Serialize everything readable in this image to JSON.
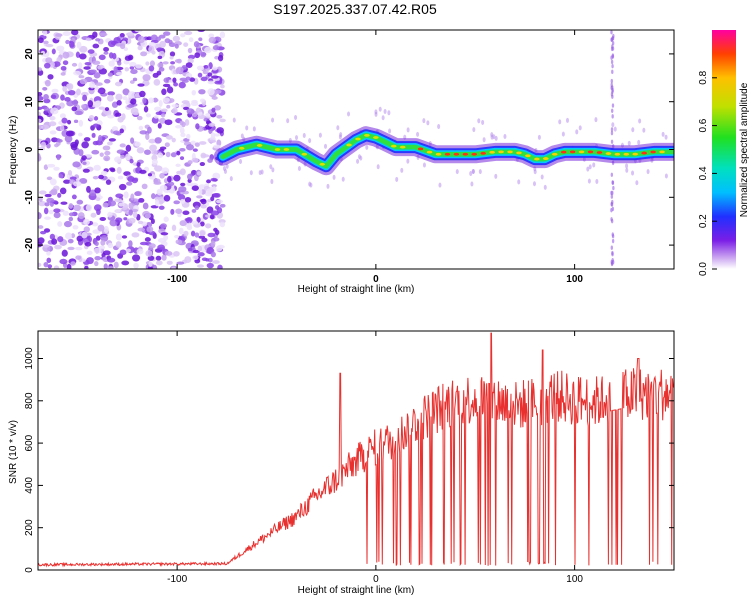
{
  "title": "S197.2025.337.07.42.R05",
  "colorbar": {
    "label": "Normalized spectral amplitude",
    "ticks": [
      "0.0",
      "0.2",
      "0.4",
      "0.6",
      "0.8"
    ],
    "tick_values": [
      0.0,
      0.2,
      0.4,
      0.6,
      0.8
    ],
    "range": [
      0,
      1
    ]
  },
  "chart_data": [
    {
      "type": "heatmap",
      "title": "S197.2025.337.07.42.R05",
      "xlabel": "Height of straight line (km)",
      "ylabel": "Frequency (Hz)",
      "xlim": [
        -170,
        150
      ],
      "ylim": [
        -25,
        25
      ],
      "x_ticks": [
        -100,
        0,
        100
      ],
      "x_tick_labels": [
        "-100",
        "0",
        "100"
      ],
      "y_ticks": [
        -20,
        -10,
        0,
        10,
        20
      ],
      "y_tick_labels": [
        "-20",
        "-10",
        "0",
        "10",
        "20"
      ],
      "noise_region_x": [
        -170,
        -77
      ],
      "spike_x": 119,
      "ridge": {
        "x": [
          -77,
          -70,
          -60,
          -50,
          -40,
          -30,
          -25,
          -20,
          -10,
          -5,
          0,
          5,
          10,
          20,
          30,
          40,
          50,
          60,
          70,
          75,
          80,
          85,
          90,
          95,
          100,
          110,
          120,
          130,
          140,
          150
        ],
        "freq": [
          -1.5,
          0,
          1,
          0,
          0,
          -2.5,
          -3.5,
          -1,
          2,
          3,
          2.5,
          1.5,
          0.5,
          0.5,
          -1,
          -1,
          -1,
          -0.5,
          -0.5,
          -1,
          -2,
          -2,
          -1,
          -0.5,
          -0.5,
          -0.5,
          -1,
          -1,
          -0.5,
          -0.5
        ]
      }
    },
    {
      "type": "line",
      "xlabel": "Height of straight line (km)",
      "ylabel": "SNR (10 * v/v)",
      "xlim": [
        -170,
        150
      ],
      "ylim": [
        0,
        1130
      ],
      "x_ticks": [
        -100,
        0,
        100
      ],
      "x_tick_labels": [
        "-100",
        "0",
        "100"
      ],
      "y_ticks": [
        0,
        200,
        400,
        600,
        800,
        1000
      ],
      "y_tick_labels": [
        "0",
        "200",
        "400",
        "600",
        "800",
        "1000"
      ],
      "series": [
        {
          "name": "SNR",
          "color": "#e8302e",
          "envelope_x": [
            -170,
            -75,
            -65,
            -50,
            -40,
            -30,
            -20,
            -10,
            0,
            10,
            20,
            30,
            40,
            50,
            60,
            70,
            80,
            90,
            100,
            110,
            120,
            130,
            150
          ],
          "envelope_y": [
            25,
            30,
            100,
            200,
            260,
            360,
            440,
            530,
            600,
            640,
            720,
            780,
            820,
            840,
            830,
            800,
            820,
            850,
            830,
            820,
            840,
            860,
            860
          ],
          "peaks": [
            {
              "x": -18,
              "y": 930
            },
            {
              "x": 58,
              "y": 1120
            },
            {
              "x": 84,
              "y": 1040
            },
            {
              "x": 132,
              "y": 1000
            }
          ]
        }
      ]
    }
  ]
}
